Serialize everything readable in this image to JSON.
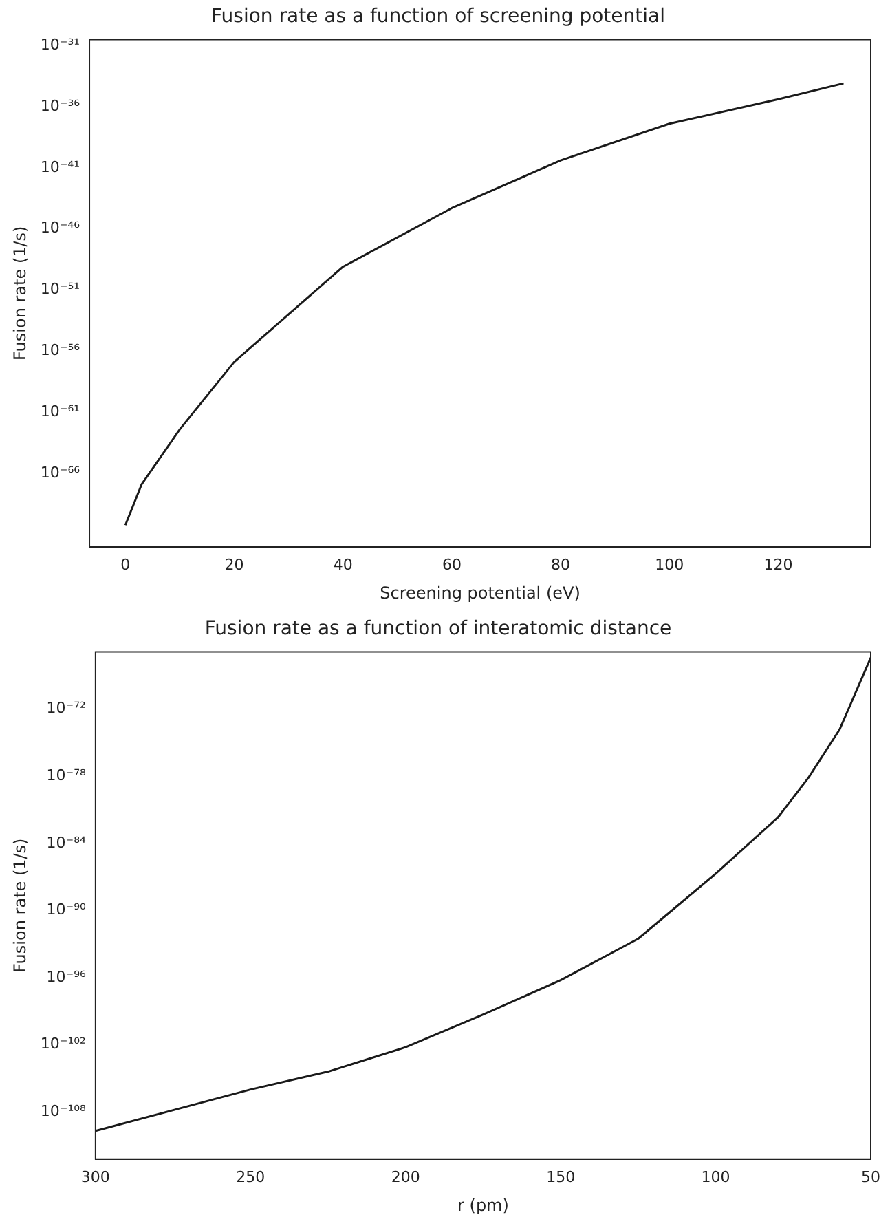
{
  "chart_data": [
    {
      "type": "line",
      "title": "Fusion rate as a function of screening potential",
      "xlabel": "Screening potential (eV)",
      "ylabel": "Fusion rate (1/s)",
      "log": "y",
      "grid": false,
      "legend": false,
      "marker": "none",
      "line_style": "solid",
      "x": [
        0,
        3,
        10,
        20,
        40,
        60,
        80,
        100,
        120,
        132
      ],
      "series": [
        {
          "color": "#1a1a1a",
          "values": [
            6e-71,
            1.3e-67,
            4e-63,
            1.3e-57,
            8e-50,
            5e-45,
            4e-41,
            4e-38,
            4e-36,
            8e-35
          ]
        }
      ],
      "xlim": [
        -6.6,
        137
      ],
      "xticks": [
        0,
        20,
        40,
        60,
        80,
        100,
        120
      ],
      "ylim": [
        1e-72,
        3e-31
      ],
      "yticks": [
        {
          "value": 1e-31,
          "label": "10⁻³¹"
        },
        {
          "value": 1e-36,
          "label": "10⁻³⁶"
        },
        {
          "value": 1e-41,
          "label": "10⁻⁴¹"
        },
        {
          "value": 1e-46,
          "label": "10⁻⁴⁶"
        },
        {
          "value": 1e-51,
          "label": "10⁻⁵¹"
        },
        {
          "value": 1e-56,
          "label": "10⁻⁵⁶"
        },
        {
          "value": 1e-61,
          "label": "10⁻⁶¹"
        },
        {
          "value": 1e-66,
          "label": "10⁻⁶⁶"
        }
      ]
    },
    {
      "type": "line",
      "title": "Fusion rate as a function of interatomic distance",
      "xlabel": "r (pm)",
      "ylabel": "Fusion rate (1/s)",
      "log": "y",
      "grid": false,
      "legend": false,
      "marker": "none",
      "line_style": "solid",
      "x": [
        300,
        250,
        225,
        200,
        175,
        150,
        125,
        100,
        80,
        70,
        60,
        50
      ],
      "series": [
        {
          "color": "#1a1a1a",
          "values": [
            2e-110,
            1e-106,
            4e-105,
            6e-103,
            5e-100,
            6e-97,
            3e-93,
            2e-87,
            2e-82,
            8e-79,
            1.6e-74,
            4e-68
          ]
        }
      ],
      "xlim": [
        300,
        50
      ],
      "xticks": [
        300,
        250,
        200,
        150,
        100,
        50
      ],
      "ylim": [
        6e-113,
        1.3e-67
      ],
      "yticks": [
        {
          "value": 1e-72,
          "label": "10⁻⁷²"
        },
        {
          "value": 1e-78,
          "label": "10⁻⁷⁸"
        },
        {
          "value": 1e-84,
          "label": "10⁻⁸⁴"
        },
        {
          "value": 1e-90,
          "label": "10⁻⁹⁰"
        },
        {
          "value": 1e-96,
          "label": "10⁻⁹⁶"
        },
        {
          "value": 1e-102,
          "label": "10⁻¹⁰²"
        },
        {
          "value": 1e-108,
          "label": "10⁻¹⁰⁸"
        }
      ]
    }
  ]
}
